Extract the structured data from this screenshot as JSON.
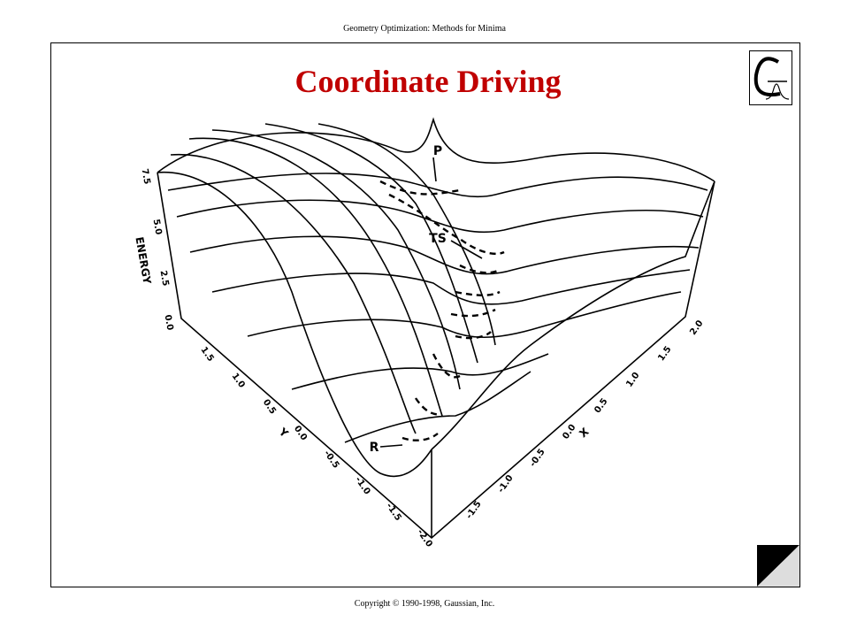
{
  "header": {
    "title": "Geometry Optimization: Methods for Minima"
  },
  "slide": {
    "title": "Coordinate Driving"
  },
  "figure": {
    "energy_axis": {
      "label": "ENERGY",
      "ticks": [
        "0.0",
        "2.5",
        "5.0",
        "7.5"
      ]
    },
    "y_axis": {
      "label": "Y",
      "ticks": [
        "1.5",
        "1.0",
        "0.5",
        "0.0",
        "-0.5",
        "-1.0",
        "-1.5",
        "-2.0"
      ]
    },
    "x_axis": {
      "label": "X",
      "ticks": [
        "-1.5",
        "-1.0",
        "-0.5",
        "0.0",
        "0.5",
        "1.0",
        "1.5",
        "2.0"
      ]
    },
    "points": [
      "P",
      "TS",
      "R"
    ]
  },
  "footer": {
    "copyright": "Copyright © 1990-1998, Gaussian, Inc."
  }
}
